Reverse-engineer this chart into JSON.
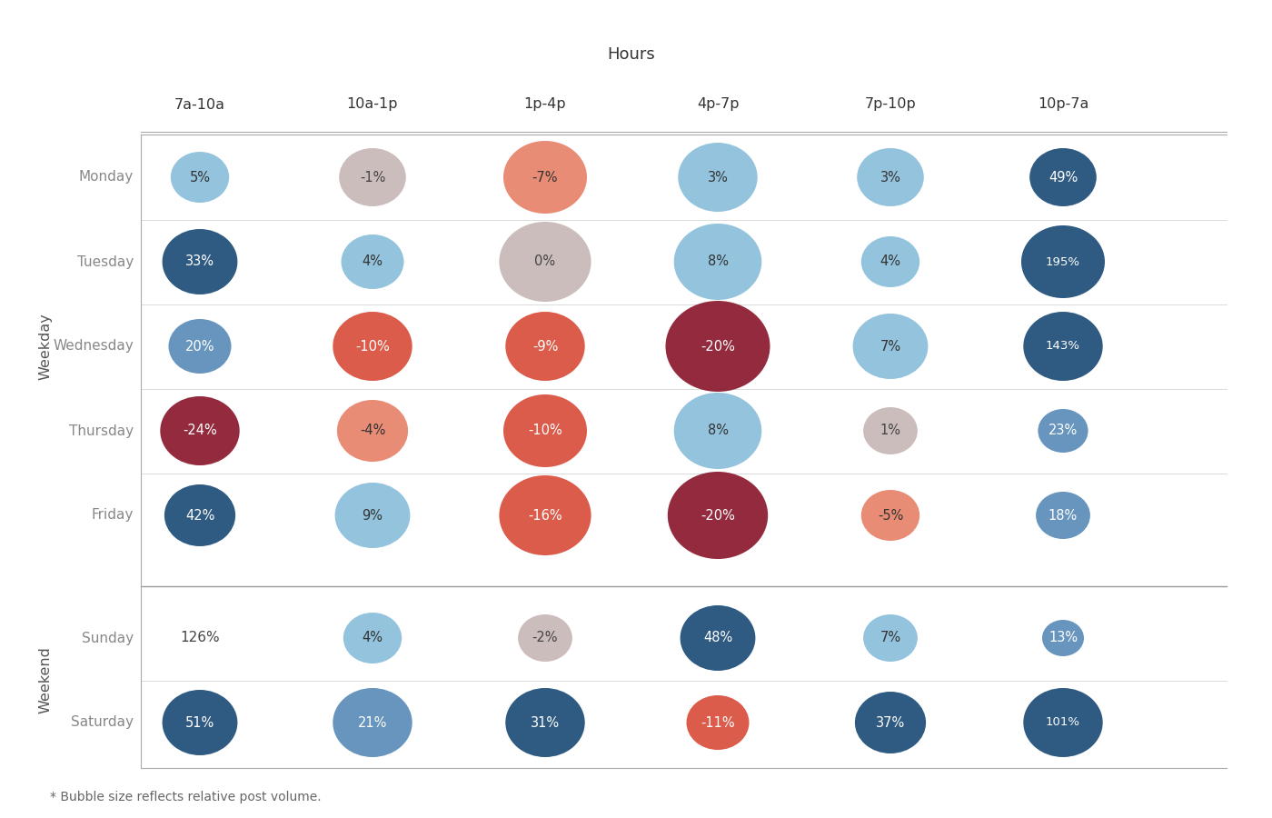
{
  "hours": [
    "7a-10a",
    "10a-1p",
    "1p-4p",
    "4p-7p",
    "7p-10p",
    "10p-7a"
  ],
  "days": [
    "Monday",
    "Tuesday",
    "Wednesday",
    "Thursday",
    "Friday",
    "Sunday",
    "Saturday"
  ],
  "values": [
    [
      5,
      -1,
      -7,
      3,
      3,
      49
    ],
    [
      33,
      4,
      0,
      8,
      4,
      195
    ],
    [
      20,
      -10,
      -9,
      -20,
      7,
      143
    ],
    [
      -24,
      -4,
      -10,
      8,
      1,
      23
    ],
    [
      42,
      9,
      -16,
      -20,
      -5,
      18
    ],
    [
      126,
      4,
      -2,
      48,
      7,
      13
    ],
    [
      51,
      21,
      31,
      -11,
      37,
      101
    ]
  ],
  "bubble_radii": [
    [
      0.28,
      0.32,
      0.4,
      0.38,
      0.32,
      0.32
    ],
    [
      0.36,
      0.3,
      0.44,
      0.42,
      0.28,
      0.4
    ],
    [
      0.3,
      0.38,
      0.38,
      0.5,
      0.36,
      0.38
    ],
    [
      0.38,
      0.34,
      0.4,
      0.42,
      0.26,
      0.24
    ],
    [
      0.34,
      0.36,
      0.44,
      0.48,
      0.28,
      0.26
    ],
    [
      0.0,
      0.28,
      0.26,
      0.36,
      0.26,
      0.2
    ],
    [
      0.36,
      0.38,
      0.38,
      0.3,
      0.34,
      0.38
    ]
  ],
  "title_top": "Hours",
  "ylabel_weekday": "Weekday",
  "ylabel_weekend": "Weekend",
  "footnote": "* Bubble size reflects relative post volume.",
  "bg_color": "#ffffff",
  "positive_blue_light": "#8BBFDB",
  "positive_blue_mid": "#5B8DB8",
  "positive_blue_dark": "#1F4E79",
  "negative_red_light": "#E8836A",
  "negative_red_mid": "#D94F3D",
  "negative_red_dark": "#8B1A2F",
  "neutral_color": "#C9B8B8"
}
